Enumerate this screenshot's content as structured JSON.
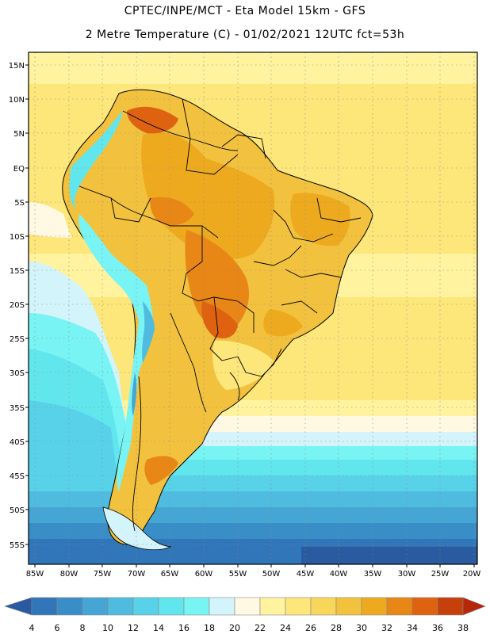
{
  "title_line1": "CPTEC/INPE/MCT -  Eta Model 15km - GFS",
  "title_line2": "2 Metre Temperature (C) - 01/02/2021 12UTC fct=53h",
  "lat_labels": [
    "15N",
    "10N",
    "5N",
    "EQ",
    "5S",
    "10S",
    "15S",
    "20S",
    "25S",
    "30S",
    "35S",
    "40S",
    "45S",
    "50S",
    "55S"
  ],
  "lon_labels": [
    "85W",
    "80W",
    "75W",
    "70W",
    "65W",
    "60W",
    "55W",
    "50W",
    "45W",
    "40W",
    "35W",
    "30W",
    "25W",
    "20W"
  ],
  "colorbar": {
    "labels": [
      "4",
      "6",
      "8",
      "10",
      "12",
      "14",
      "16",
      "18",
      "20",
      "22",
      "24",
      "26",
      "28",
      "30",
      "32",
      "34",
      "36",
      "38"
    ],
    "colors": [
      "#2a5aa0",
      "#3076b8",
      "#3a8ec8",
      "#45a6d6",
      "#4fbcdf",
      "#58d2e8",
      "#62e6ee",
      "#78f4f4",
      "#d2f4fa",
      "#fff8e2",
      "#fff3a0",
      "#fde67a",
      "#f8d65a",
      "#f2c23e",
      "#eeaa1e",
      "#e88616",
      "#de6210",
      "#c6400c",
      "#b42808"
    ]
  }
}
